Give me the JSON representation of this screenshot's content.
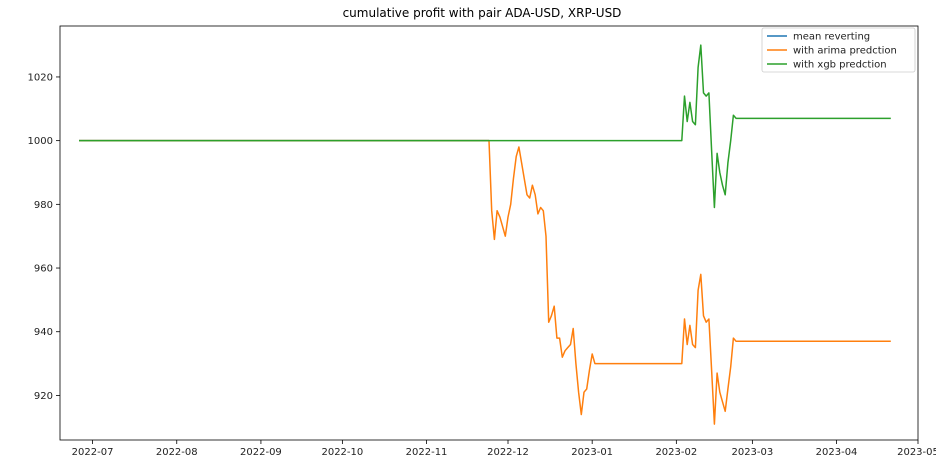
{
  "chart_data": {
    "type": "line",
    "title": "cumulative profit with pair ADA-USD, XRP-USD",
    "xlabel": "",
    "ylabel": "",
    "x_ticks": [
      {
        "date": "2022-07-01",
        "label": "2022-07"
      },
      {
        "date": "2022-08-01",
        "label": "2022-08"
      },
      {
        "date": "2022-09-01",
        "label": "2022-09"
      },
      {
        "date": "2022-10-01",
        "label": "2022-10"
      },
      {
        "date": "2022-11-01",
        "label": "2022-11"
      },
      {
        "date": "2022-12-01",
        "label": "2022-12"
      },
      {
        "date": "2023-01-01",
        "label": "2023-01"
      },
      {
        "date": "2023-02-01",
        "label": "2023-02"
      },
      {
        "date": "2023-03-01",
        "label": "2023-03"
      },
      {
        "date": "2023-04-01",
        "label": "2023-04"
      },
      {
        "date": "2023-05-01",
        "label": "2023-05"
      }
    ],
    "y_ticks": [
      920,
      940,
      960,
      980,
      1000,
      1020
    ],
    "xlim": [
      "2022-06-19",
      "2023-05-01"
    ],
    "ylim": [
      906,
      1036
    ],
    "grid": false,
    "legend_position": "top-right",
    "series": [
      {
        "name": "mean reverting",
        "color": "#1f77b4",
        "points": [
          [
            "2022-06-26",
            1000
          ],
          [
            "2022-11-24",
            1000
          ]
        ]
      },
      {
        "name": "with arima predction",
        "color": "#ff7f0e",
        "points": [
          [
            "2022-06-26",
            1000
          ],
          [
            "2022-11-24",
            1000
          ],
          [
            "2022-11-25",
            978
          ],
          [
            "2022-11-26",
            969
          ],
          [
            "2022-11-27",
            978
          ],
          [
            "2022-11-28",
            976
          ],
          [
            "2022-11-29",
            973
          ],
          [
            "2022-11-30",
            970
          ],
          [
            "2022-12-01",
            976
          ],
          [
            "2022-12-02",
            980
          ],
          [
            "2022-12-03",
            988
          ],
          [
            "2022-12-04",
            995
          ],
          [
            "2022-12-05",
            998
          ],
          [
            "2022-12-06",
            993
          ],
          [
            "2022-12-07",
            988
          ],
          [
            "2022-12-08",
            983
          ],
          [
            "2022-12-09",
            982
          ],
          [
            "2022-12-10",
            986
          ],
          [
            "2022-12-11",
            983
          ],
          [
            "2022-12-12",
            977
          ],
          [
            "2022-12-13",
            979
          ],
          [
            "2022-12-14",
            978
          ],
          [
            "2022-12-15",
            970
          ],
          [
            "2022-12-16",
            943
          ],
          [
            "2022-12-17",
            945
          ],
          [
            "2022-12-18",
            948
          ],
          [
            "2022-12-19",
            938
          ],
          [
            "2022-12-20",
            938
          ],
          [
            "2022-12-21",
            932
          ],
          [
            "2022-12-22",
            934
          ],
          [
            "2022-12-23",
            935
          ],
          [
            "2022-12-24",
            936
          ],
          [
            "2022-12-25",
            941
          ],
          [
            "2022-12-26",
            930
          ],
          [
            "2022-12-27",
            921
          ],
          [
            "2022-12-28",
            914
          ],
          [
            "2022-12-29",
            921
          ],
          [
            "2022-12-30",
            922
          ],
          [
            "2022-12-31",
            928
          ],
          [
            "2023-01-01",
            933
          ],
          [
            "2023-01-02",
            930
          ],
          [
            "2023-02-03",
            930
          ],
          [
            "2023-02-04",
            944
          ],
          [
            "2023-02-05",
            936
          ],
          [
            "2023-02-06",
            942
          ],
          [
            "2023-02-07",
            936
          ],
          [
            "2023-02-08",
            935
          ],
          [
            "2023-02-09",
            953
          ],
          [
            "2023-02-10",
            958
          ],
          [
            "2023-02-11",
            945
          ],
          [
            "2023-02-12",
            943
          ],
          [
            "2023-02-13",
            944
          ],
          [
            "2023-02-14",
            928
          ],
          [
            "2023-02-15",
            911
          ],
          [
            "2023-02-16",
            927
          ],
          [
            "2023-02-17",
            921
          ],
          [
            "2023-02-18",
            918
          ],
          [
            "2023-02-19",
            915
          ],
          [
            "2023-02-20",
            922
          ],
          [
            "2023-02-21",
            929
          ],
          [
            "2023-02-22",
            938
          ],
          [
            "2023-02-23",
            937
          ],
          [
            "2023-04-21",
            937
          ]
        ]
      },
      {
        "name": "with xgb predction",
        "color": "#2ca02c",
        "points": [
          [
            "2022-06-26",
            1000
          ],
          [
            "2023-02-03",
            1000
          ],
          [
            "2023-02-04",
            1014
          ],
          [
            "2023-02-05",
            1006
          ],
          [
            "2023-02-06",
            1012
          ],
          [
            "2023-02-07",
            1006
          ],
          [
            "2023-02-08",
            1005
          ],
          [
            "2023-02-09",
            1023
          ],
          [
            "2023-02-10",
            1030
          ],
          [
            "2023-02-11",
            1015
          ],
          [
            "2023-02-12",
            1014
          ],
          [
            "2023-02-13",
            1015
          ],
          [
            "2023-02-14",
            997
          ],
          [
            "2023-02-15",
            979
          ],
          [
            "2023-02-16",
            996
          ],
          [
            "2023-02-17",
            990
          ],
          [
            "2023-02-18",
            986
          ],
          [
            "2023-02-19",
            983
          ],
          [
            "2023-02-20",
            993
          ],
          [
            "2023-02-21",
            1000
          ],
          [
            "2023-02-22",
            1008
          ],
          [
            "2023-02-23",
            1007
          ],
          [
            "2023-04-21",
            1007
          ]
        ]
      }
    ]
  }
}
